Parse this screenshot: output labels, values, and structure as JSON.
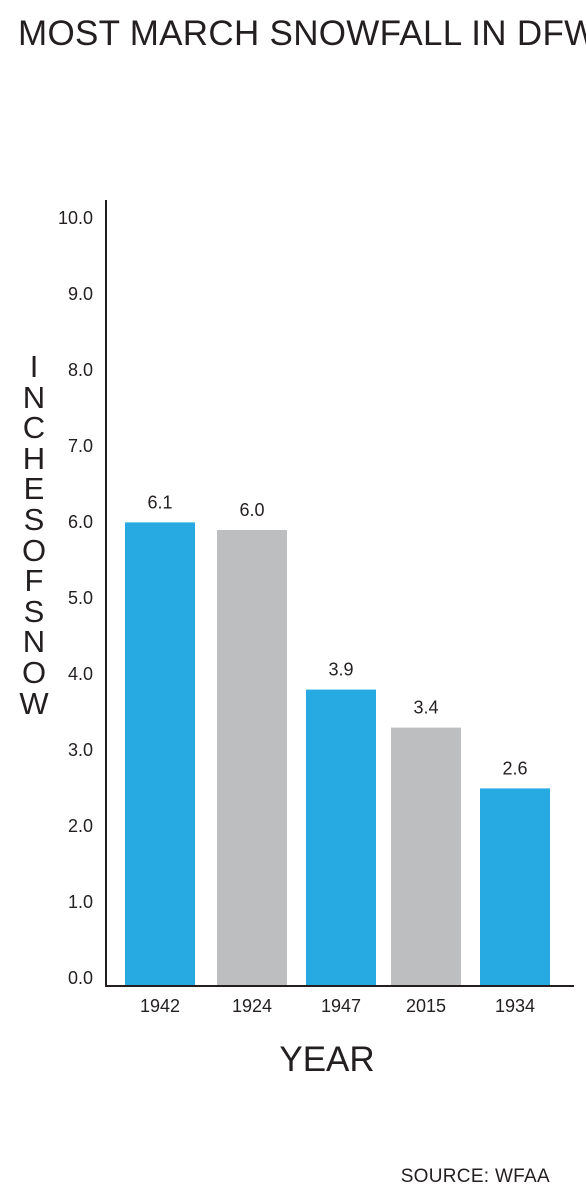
{
  "header": {
    "title": "MOST MARCH SNOWFALL IN DFW"
  },
  "footer": {
    "source": "SOURCE: WFAA"
  },
  "colors": {
    "blue": "#26aae1",
    "gray": "#bcbec0",
    "text": "#231f20"
  },
  "chart_data": {
    "type": "bar",
    "title": "MOST MARCH SNOWFALL IN DFW",
    "xlabel": "YEAR",
    "ylabel": "INCHES OF SNOW",
    "categories": [
      "1942",
      "1924",
      "1947",
      "2015",
      "1934"
    ],
    "values": [
      6.1,
      6.0,
      3.9,
      3.4,
      2.6
    ],
    "value_labels": [
      "6.1",
      "6.0",
      "3.9",
      "3.4",
      "2.6"
    ],
    "bar_colors": [
      "#26aae1",
      "#bcbec0",
      "#26aae1",
      "#bcbec0",
      "#26aae1"
    ],
    "yticks": [
      "0.0",
      "1.0",
      "2.0",
      "3.0",
      "4.0",
      "5.0",
      "6.0",
      "7.0",
      "8.0",
      "9.0",
      "10.0"
    ],
    "ylim": [
      0,
      10
    ],
    "grid": false,
    "legend": "none"
  }
}
